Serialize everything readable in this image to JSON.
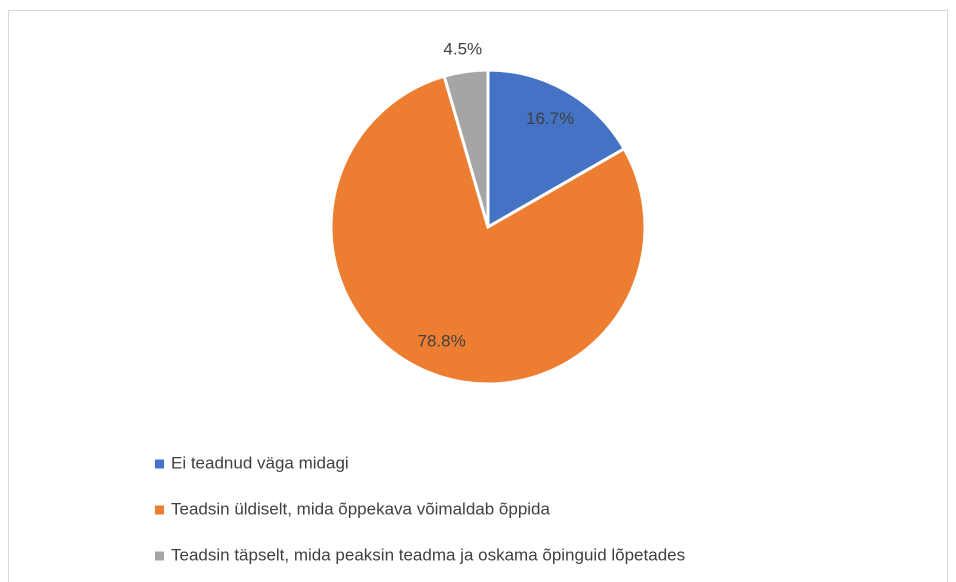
{
  "chart_data": {
    "type": "pie",
    "categories": [
      "Ei teadnud väga midagi",
      "Teadsin üldiselt, mida õppekava võimaldab õppida",
      "Teadsin täpselt, mida peaksin teadma ja oskama õpinguid lõpetades"
    ],
    "values": [
      16.7,
      78.8,
      4.5
    ],
    "value_labels": [
      "16.7%",
      "78.8%",
      "4.5%"
    ],
    "colors": [
      "#4472c4",
      "#ed7d31",
      "#a5a5a5"
    ],
    "legend": "bottom-left"
  }
}
